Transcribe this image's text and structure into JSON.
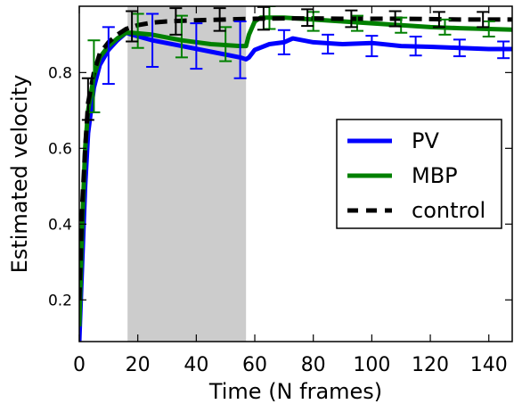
{
  "chart_data": {
    "type": "line",
    "title": "",
    "xlabel": "Time (N  frames)",
    "ylabel": "Estimated velocity",
    "xlim": [
      0,
      148
    ],
    "ylim": [
      0.09,
      0.975
    ],
    "x_ticks": [
      "0",
      "20",
      "40",
      "60",
      "80",
      "100",
      "120",
      "140"
    ],
    "y_ticks": [
      "0.2",
      "0.4",
      "0.6",
      "0.8"
    ],
    "shaded_region": [
      16.5,
      57
    ],
    "legend_position": "center-right",
    "series": [
      {
        "name": "PV",
        "color": "#0000ff",
        "style": "solid",
        "x": [
          0,
          1,
          2,
          3,
          5,
          7,
          10,
          13,
          16,
          18,
          25,
          35,
          45,
          55,
          57,
          58,
          60,
          65,
          70,
          73,
          80,
          90,
          100,
          110,
          120,
          130,
          140,
          148
        ],
        "y": [
          0.09,
          0.3,
          0.5,
          0.64,
          0.76,
          0.82,
          0.86,
          0.885,
          0.905,
          0.9,
          0.885,
          0.87,
          0.855,
          0.84,
          0.835,
          0.84,
          0.86,
          0.875,
          0.88,
          0.89,
          0.88,
          0.875,
          0.878,
          0.87,
          0.868,
          0.865,
          0.862,
          0.862
        ]
      },
      {
        "name": "MBP",
        "color": "#008000",
        "style": "solid",
        "x": [
          0,
          1,
          2,
          3,
          5,
          7,
          10,
          13,
          16,
          18,
          25,
          35,
          45,
          55,
          57,
          58,
          60,
          62,
          65,
          70,
          80,
          90,
          100,
          110,
          120,
          130,
          140,
          148
        ],
        "y": [
          0.13,
          0.4,
          0.6,
          0.7,
          0.79,
          0.84,
          0.87,
          0.89,
          0.905,
          0.905,
          0.9,
          0.885,
          0.875,
          0.87,
          0.87,
          0.9,
          0.935,
          0.945,
          0.945,
          0.945,
          0.94,
          0.935,
          0.93,
          0.925,
          0.92,
          0.917,
          0.915,
          0.913
        ]
      },
      {
        "name": "control",
        "color": "#000000",
        "style": "dashed",
        "x": [
          0,
          1,
          2,
          3,
          5,
          7,
          10,
          13,
          16,
          20,
          25,
          30,
          40,
          50,
          60,
          70,
          80,
          90,
          100,
          110,
          120,
          130,
          140,
          148
        ],
        "y": [
          0.2,
          0.45,
          0.6,
          0.72,
          0.8,
          0.85,
          0.88,
          0.9,
          0.915,
          0.925,
          0.932,
          0.935,
          0.938,
          0.94,
          0.942,
          0.943,
          0.943,
          0.942,
          0.942,
          0.942,
          0.941,
          0.94,
          0.94,
          0.94
        ]
      }
    ],
    "error_bars": [
      {
        "series": "PV",
        "x": [
          10,
          25,
          40,
          55,
          70,
          85,
          100,
          115,
          130,
          145
        ],
        "y": [
          0.845,
          0.885,
          0.87,
          0.86,
          0.88,
          0.875,
          0.87,
          0.87,
          0.865,
          0.86
        ],
        "err": [
          0.075,
          0.07,
          0.06,
          0.075,
          0.032,
          0.025,
          0.027,
          0.025,
          0.022,
          0.022
        ]
      },
      {
        "series": "MBP",
        "x": [
          5,
          20,
          35,
          50,
          65,
          80,
          95,
          110,
          125,
          140
        ],
        "y": [
          0.79,
          0.91,
          0.895,
          0.875,
          0.945,
          0.935,
          0.93,
          0.925,
          0.92,
          0.915
        ],
        "err": [
          0.095,
          0.045,
          0.055,
          0.045,
          0.03,
          0.025,
          0.02,
          0.02,
          0.02,
          0.02
        ]
      },
      {
        "series": "control",
        "x": [
          3,
          18,
          33,
          48,
          63,
          78,
          93,
          108,
          123,
          138
        ],
        "y": [
          0.73,
          0.922,
          0.935,
          0.94,
          0.943,
          0.945,
          0.942,
          0.942,
          0.94,
          0.94
        ],
        "err": [
          0.055,
          0.04,
          0.035,
          0.03,
          0.03,
          0.022,
          0.022,
          0.02,
          0.02,
          0.02
        ]
      }
    ]
  }
}
